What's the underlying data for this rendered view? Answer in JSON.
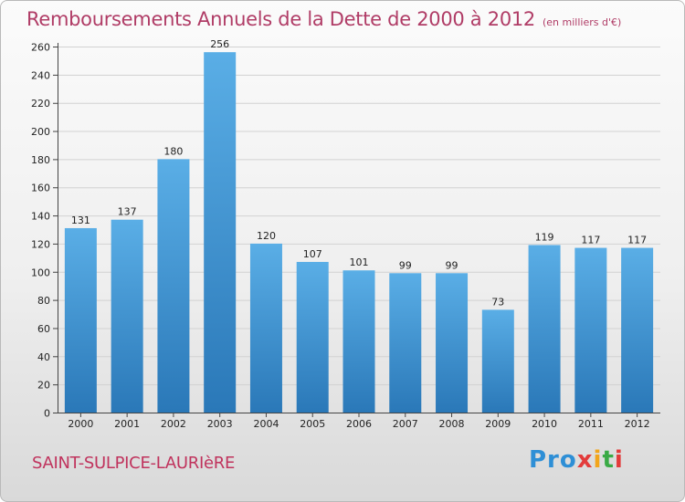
{
  "header": {
    "title": "Remboursements Annuels de la Dette de 2000 à 2012",
    "unit": "(en milliers d'€)"
  },
  "footer": {
    "commune": "SAINT-SULPICE-LAURIèRE",
    "logo": [
      "Pro",
      "x",
      "i",
      "t",
      "i"
    ]
  },
  "colors": {
    "bar_top": "#5aaee6",
    "bar_bottom": "#2a78b8",
    "title": "#b03c66"
  },
  "chart_data": {
    "type": "bar",
    "title": "Remboursements Annuels de la Dette de 2000 à 2012",
    "categories": [
      "2000",
      "2001",
      "2002",
      "2003",
      "2004",
      "2005",
      "2006",
      "2007",
      "2008",
      "2009",
      "2010",
      "2011",
      "2012"
    ],
    "values": [
      131,
      137,
      180,
      256,
      120,
      107,
      101,
      99,
      99,
      73,
      119,
      117,
      117
    ],
    "ylim": [
      0,
      260
    ],
    "yticks": [
      0,
      20,
      40,
      60,
      80,
      100,
      120,
      140,
      160,
      180,
      200,
      220,
      240,
      260
    ],
    "grid": true,
    "legend": "none"
  }
}
